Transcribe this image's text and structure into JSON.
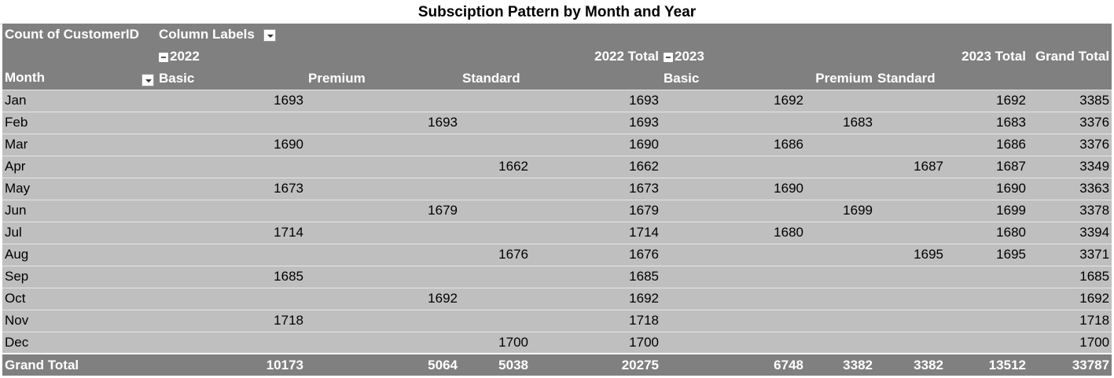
{
  "title": "Subsciption Pattern by Month and Year",
  "pivot": {
    "value_field": "Count of CustomerID",
    "column_labels": "Column Labels",
    "row_label": "Month",
    "year_2022": "2022",
    "year_2023": "2023",
    "total_2022_label": "2022 Total",
    "total_2023_label": "2023 Total",
    "grand_total_label": "Grand Total",
    "sub_2022": [
      "Basic",
      "Premium",
      "Standard"
    ],
    "sub_2023": [
      "Basic",
      "Premium",
      "Standard"
    ],
    "rows": [
      {
        "month": "Jan",
        "v": [
          "1693",
          "",
          "",
          "1693",
          "1692",
          "",
          "",
          "1692",
          "3385"
        ]
      },
      {
        "month": "Feb",
        "v": [
          "",
          "1693",
          "",
          "1693",
          "",
          "1683",
          "",
          "1683",
          "3376"
        ]
      },
      {
        "month": "Mar",
        "v": [
          "1690",
          "",
          "",
          "1690",
          "1686",
          "",
          "",
          "1686",
          "3376"
        ]
      },
      {
        "month": "Apr",
        "v": [
          "",
          "",
          "1662",
          "1662",
          "",
          "",
          "1687",
          "1687",
          "3349"
        ]
      },
      {
        "month": "May",
        "v": [
          "1673",
          "",
          "",
          "1673",
          "1690",
          "",
          "",
          "1690",
          "3363"
        ]
      },
      {
        "month": "Jun",
        "v": [
          "",
          "1679",
          "",
          "1679",
          "",
          "1699",
          "",
          "1699",
          "3378"
        ]
      },
      {
        "month": "Jul",
        "v": [
          "1714",
          "",
          "",
          "1714",
          "1680",
          "",
          "",
          "1680",
          "3394"
        ]
      },
      {
        "month": "Aug",
        "v": [
          "",
          "",
          "1676",
          "1676",
          "",
          "",
          "1695",
          "1695",
          "3371"
        ]
      },
      {
        "month": "Sep",
        "v": [
          "1685",
          "",
          "",
          "1685",
          "",
          "",
          "",
          "",
          "1685"
        ]
      },
      {
        "month": "Oct",
        "v": [
          "",
          "1692",
          "",
          "1692",
          "",
          "",
          "",
          "",
          "1692"
        ]
      },
      {
        "month": "Nov",
        "v": [
          "1718",
          "",
          "",
          "1718",
          "",
          "",
          "",
          "",
          "1718"
        ]
      },
      {
        "month": "Dec",
        "v": [
          "",
          "",
          "1700",
          "1700",
          "",
          "",
          "",
          "",
          "1700"
        ]
      }
    ],
    "grand_total_row": [
      "10173",
      "5064",
      "5038",
      "20275",
      "6748",
      "3382",
      "3382",
      "13512",
      "33787"
    ]
  }
}
